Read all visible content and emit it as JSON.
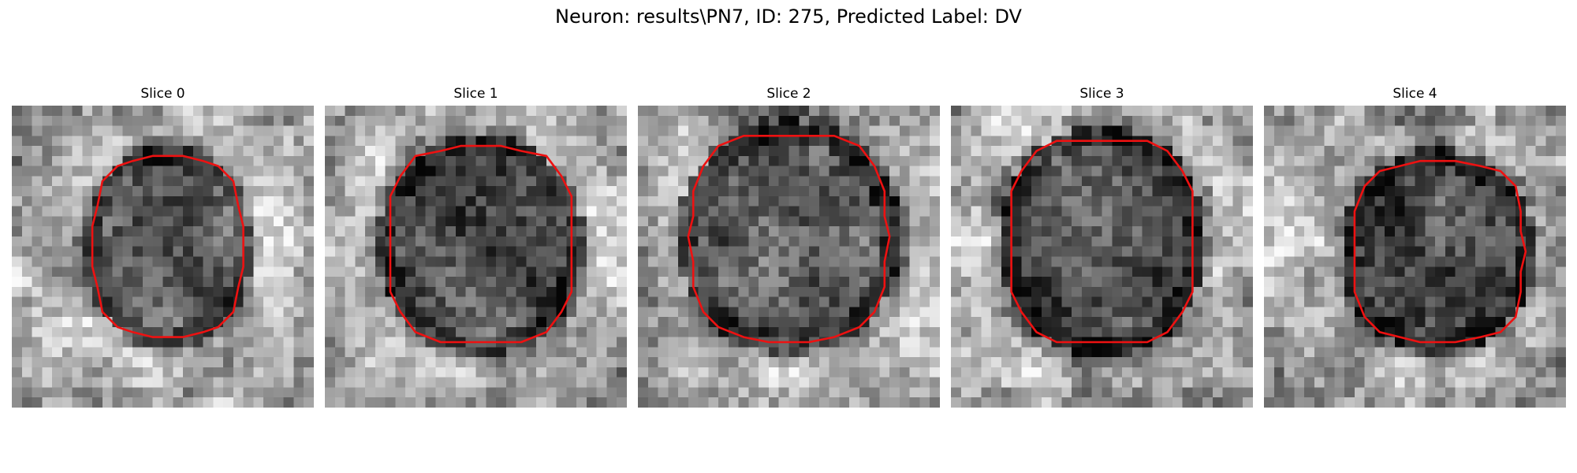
{
  "figure": {
    "title": "Neuron: results\\PN7, ID: 275, Predicted Label: DV"
  },
  "colors": {
    "contour": "#ee1111",
    "background": "#ffffff"
  },
  "panels": [
    {
      "title": "Slice 0",
      "image": "grayscale-microscopy-patch",
      "overlay": "red-outline-contour"
    },
    {
      "title": "Slice 1",
      "image": "grayscale-microscopy-patch",
      "overlay": "red-outline-contour"
    },
    {
      "title": "Slice 2",
      "image": "grayscale-microscopy-patch",
      "overlay": "red-outline-contour"
    },
    {
      "title": "Slice 3",
      "image": "grayscale-microscopy-patch",
      "overlay": "red-outline-contour"
    },
    {
      "title": "Slice 4",
      "image": "grayscale-microscopy-patch",
      "overlay": "red-outline-contour"
    }
  ]
}
